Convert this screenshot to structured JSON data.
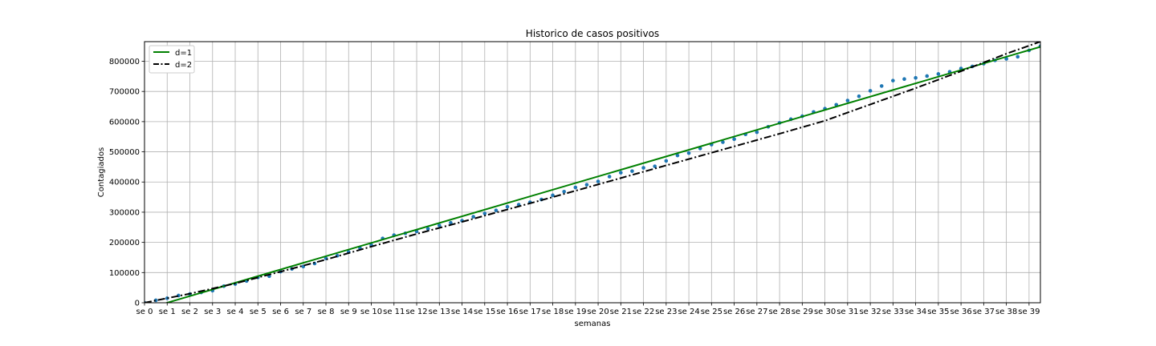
{
  "chart_data": {
    "type": "line",
    "title": "Historico de casos positivos",
    "xlabel": "semanas",
    "ylabel": "Contagiados",
    "ylim": [
      0,
      865000
    ],
    "xlim": [
      0,
      39.5
    ],
    "grid": true,
    "legend_position": "top-left",
    "categories": [
      "se 0",
      "se 1",
      "se 2",
      "se 3",
      "se 4",
      "se 5",
      "se 6",
      "se 7",
      "se 8",
      "se 9",
      "se 10",
      "se 11",
      "se 12",
      "se 13",
      "se 14",
      "se 15",
      "se 16",
      "se 17",
      "se 18",
      "se 19",
      "se 20",
      "se 21",
      "se 22",
      "se 23",
      "se 24",
      "se 25",
      "se 26",
      "se 27",
      "se 28",
      "se 29",
      "se 30",
      "se 31",
      "se 32",
      "se 33",
      "se 34",
      "se 35",
      "se 36",
      "se 37",
      "se 38",
      "se 39"
    ],
    "yticks": [
      0,
      100000,
      200000,
      300000,
      400000,
      500000,
      600000,
      700000,
      800000
    ],
    "series": [
      {
        "name": "d=1",
        "kind": "line",
        "color": "#008000",
        "dash": "solid",
        "x": [
          0,
          39.5
        ],
        "values": [
          -22000,
          848000
        ]
      },
      {
        "name": "d=2",
        "kind": "line",
        "color": "#000000",
        "dash": "dashdot",
        "x": [
          0,
          2,
          4,
          6,
          8,
          10,
          12,
          14,
          16,
          18,
          20,
          22,
          24,
          26,
          28,
          30,
          32,
          34,
          36,
          38,
          39.5
        ],
        "values": [
          0,
          30000,
          64000,
          103000,
          143000,
          186000,
          228000,
          268000,
          309000,
          350000,
          392000,
          434000,
          476000,
          518000,
          560000,
          603000,
          657000,
          711000,
          767000,
          825000,
          865000
        ]
      },
      {
        "name": "",
        "kind": "scatter",
        "color": "#1f77b4",
        "x": [
          0,
          0.5,
          1,
          1.5,
          2,
          2.5,
          3,
          3.5,
          4,
          4.5,
          5,
          5.5,
          6,
          6.5,
          7,
          7.5,
          8,
          8.5,
          9,
          9.5,
          10,
          10.5,
          11,
          11.5,
          12,
          12.5,
          13,
          13.5,
          14,
          14.5,
          15,
          15.5,
          16,
          16.5,
          17,
          17.5,
          18,
          18.5,
          19,
          19.5,
          20,
          20.5,
          21,
          21.5,
          22,
          22.5,
          23,
          23.5,
          24,
          24.5,
          25,
          25.5,
          26,
          26.5,
          27,
          27.5,
          28,
          28.5,
          29,
          29.5,
          30,
          30.5,
          31,
          31.5,
          32,
          32.5,
          33,
          33.5,
          34,
          34.5,
          35,
          35.5,
          36,
          36.5,
          37,
          37.5,
          38,
          38.5,
          39,
          39.5
        ],
        "values": [
          0,
          8000,
          15000,
          24000,
          29000,
          34000,
          40000,
          55000,
          62000,
          72000,
          84000,
          88000,
          103000,
          112000,
          120000,
          130000,
          147000,
          156000,
          168000,
          181000,
          191000,
          213000,
          224000,
          230000,
          236000,
          245000,
          256000,
          265000,
          272000,
          285000,
          296000,
          306000,
          318000,
          325000,
          333000,
          342000,
          356000,
          368000,
          382000,
          391000,
          402000,
          418000,
          431000,
          436000,
          447000,
          452000,
          470000,
          488000,
          496000,
          511000,
          524000,
          532000,
          542000,
          558000,
          565000,
          583000,
          596000,
          608000,
          618000,
          632000,
          643000,
          656000,
          670000,
          684000,
          702000,
          718000,
          736000,
          741000,
          745000,
          751000,
          758000,
          765000,
          776000,
          783000,
          792000,
          803000,
          808000,
          815000,
          836000,
          850000
        ]
      }
    ]
  }
}
